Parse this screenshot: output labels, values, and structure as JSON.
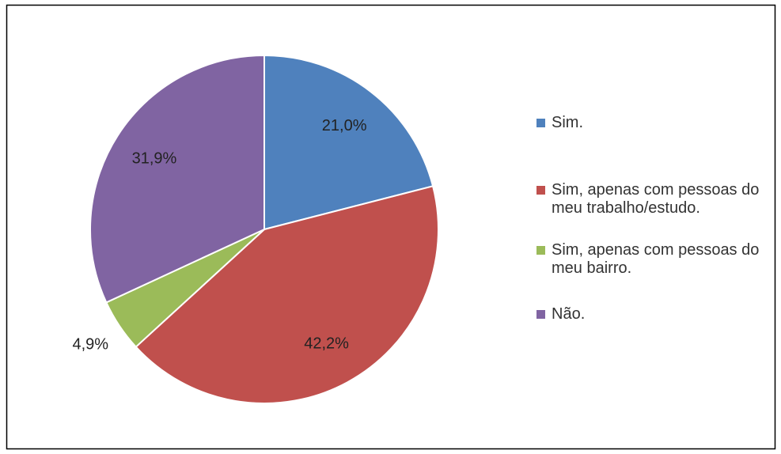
{
  "chart_data": {
    "type": "pie",
    "categories": [
      "Sim.",
      "Sim, apenas com pessoas do meu trabalho/estudo.",
      "Sim, apenas com pessoas do meu bairro.",
      "Não."
    ],
    "values": [
      21.0,
      42.2,
      4.9,
      31.9
    ],
    "value_labels": [
      "21,0%",
      "42,2%",
      "4,9%",
      "31,9%"
    ],
    "colors": [
      "#4f81bd",
      "#c0504d",
      "#9bbb59",
      "#8064a2"
    ],
    "legend": "right"
  }
}
